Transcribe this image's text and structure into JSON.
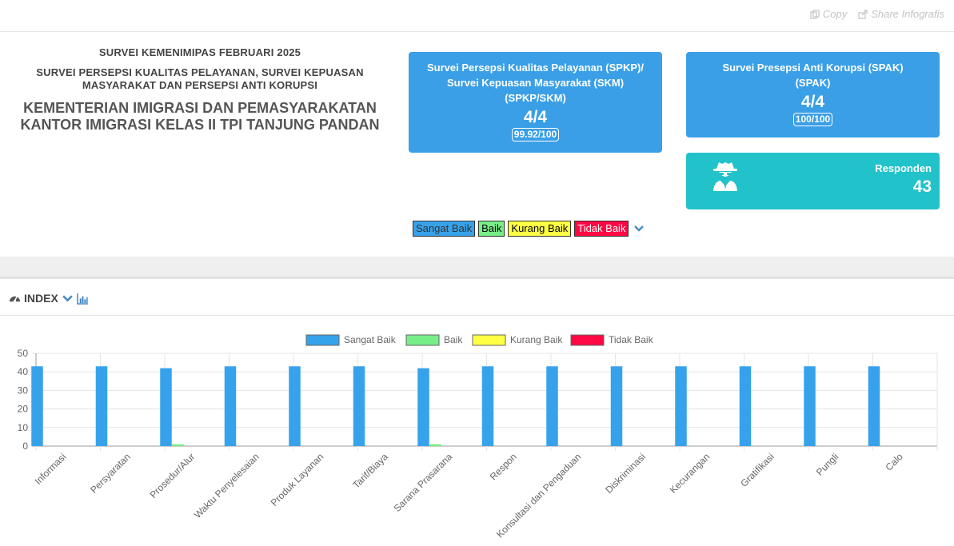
{
  "top_actions": {
    "copy": "Copy",
    "share": "Share Infografis"
  },
  "header": {
    "survey": "SURVEI KEMENIMIPAS FEBRUARI 2025",
    "sub": "SURVEI PERSEPSI KUALITAS PELAYANAN, SURVEI KEPUASAN MASYARAKAT DAN PERSEPSI ANTI KORUPSI",
    "ministry": "KEMENTERIAN IMIGRASI DAN PEMASYARAKATAN",
    "office": "KANTOR IMIGRASI KELAS II TPI TANJUNG PANDAN"
  },
  "cards": {
    "spkp": {
      "title_line1": "Survei Persepsi Kualitas Pelayanan (SPKP)/",
      "title_line2": "Survei Kepuasan Masyarakat (SKM)",
      "title_line3": "(SPKP/SKM)",
      "score": "4/4",
      "badge": "99.92/100"
    },
    "spak": {
      "title_line1": "Survei Presepsi Anti Korupsi (SPAK)",
      "title_line2": "(SPAK)",
      "score": "4/4",
      "badge": "100/100"
    },
    "responden": {
      "label": "Responden",
      "value": "43"
    }
  },
  "legend_badges": [
    {
      "label": "Sangat Baik",
      "color": "#36a2eb"
    },
    {
      "label": "Baik",
      "color": "#77ee88"
    },
    {
      "label": "Kurang Baik",
      "color": "#ffff44"
    },
    {
      "label": "Tidak Baik",
      "color": "#ff0844"
    }
  ],
  "index_label": "INDEX",
  "chart_data": {
    "type": "bar",
    "categories": [
      "Informasi",
      "Persyaratan",
      "Prosedur/Alur",
      "Waktu Penyelesaian",
      "Produk Layanan",
      "Tarif/Biaya",
      "Sarana Prasarana",
      "Respon",
      "Konsultasi dan Pengaduan",
      "Diskriminasi",
      "Kecurangan",
      "Gratifikasi",
      "Pungli",
      "Calo"
    ],
    "series": [
      {
        "name": "Sangat Baik",
        "color": "#36a2eb",
        "values": [
          43,
          43,
          42,
          43,
          43,
          43,
          42,
          43,
          43,
          43,
          43,
          43,
          43,
          43
        ]
      },
      {
        "name": "Baik",
        "color": "#77ee88",
        "values": [
          0,
          0,
          1,
          0,
          0,
          0,
          1,
          0,
          0,
          0,
          0,
          0,
          0,
          0
        ]
      },
      {
        "name": "Kurang Baik",
        "color": "#ffff44",
        "values": [
          0,
          0,
          0,
          0,
          0,
          0,
          0,
          0,
          0,
          0,
          0,
          0,
          0,
          0
        ]
      },
      {
        "name": "Tidak Baik",
        "color": "#ff0844",
        "values": [
          0,
          0,
          0,
          0,
          0,
          0,
          0,
          0,
          0,
          0,
          0,
          0,
          0,
          0
        ]
      }
    ],
    "ylim": [
      0,
      50
    ],
    "yticks": [
      0,
      10,
      20,
      30,
      40,
      50
    ],
    "grid": true,
    "legend": "top-center"
  }
}
